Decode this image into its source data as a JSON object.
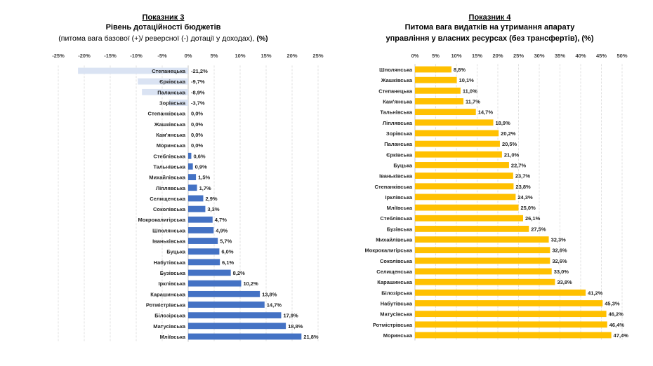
{
  "chart_data": [
    {
      "type": "bar",
      "orientation": "horizontal",
      "title": "Показник 3",
      "subtitle": "Рівень дотаційності бюджетів",
      "note_prefix": "(питома вага базової (+)/ реверсної (-) дотації  у доходах),",
      "note_unit": "(%)",
      "xlim": [
        -25,
        25
      ],
      "ticks": [
        "-25%",
        "-20%",
        "-15%",
        "-10%",
        "-5%",
        "0%",
        "5%",
        "10%",
        "15%",
        "20%",
        "25%"
      ],
      "grid": true,
      "positive_color": "#4472C4",
      "negative_color": "#DAE3F3",
      "categories": [
        "Степанецька",
        "Єрківська",
        "Паланська",
        "Зорівська",
        "Степанківська",
        "Жашківська",
        "Кам'янська",
        "Моринська",
        "Стеблівська",
        "Тальнівська",
        "Михайлівська",
        "Ліплявська",
        "Селищенська",
        "Соколівська",
        "Мокрокалигірська",
        "Шполянська",
        "Іваньківська",
        "Буцька",
        "Набутівська",
        "Бузівська",
        "Ірклівська",
        "Карашинська",
        "Ротмістрівська",
        "Білозірська",
        "Матусівська",
        "Мліївська"
      ],
      "values": [
        -21.2,
        -9.7,
        -8.9,
        -3.7,
        0.0,
        0.0,
        0.0,
        0.0,
        0.6,
        0.9,
        1.5,
        1.7,
        2.9,
        3.3,
        4.7,
        4.9,
        5.7,
        6.0,
        6.1,
        8.2,
        10.2,
        13.8,
        14.7,
        17.9,
        18.8,
        21.8
      ],
      "labels": [
        "-21,2%",
        "-9,7%",
        "-8,9%",
        "-3,7%",
        "0,0%",
        "0,0%",
        "0,0%",
        "0,0%",
        "0,6%",
        "0,9%",
        "1,5%",
        "1,7%",
        "2,9%",
        "3,3%",
        "4,7%",
        "4,9%",
        "5,7%",
        "6,0%",
        "6,1%",
        "8,2%",
        "10,2%",
        "13,8%",
        "14,7%",
        "17,9%",
        "18,8%",
        "21,8%"
      ]
    },
    {
      "type": "bar",
      "orientation": "horizontal",
      "title": "Показник 4",
      "subtitle": "Питома вага видатків на утримання апарату",
      "subtitle2": "управління у власних ресурсах (без трансфертів), (%)",
      "xlim": [
        0,
        50
      ],
      "ticks": [
        "0%",
        "5%",
        "10%",
        "15%",
        "20%",
        "25%",
        "30%",
        "35%",
        "40%",
        "45%",
        "50%"
      ],
      "grid": true,
      "color": "#FFC000",
      "categories": [
        "Шполянська",
        "Жашківська",
        "Степанецька",
        "Кам'янська",
        "Тальнівська",
        "Ліплявська",
        "Зорівська",
        "Паланська",
        "Єрківська",
        "Буцька",
        "Іваньківська",
        "Степанківська",
        "Ірклівська",
        "Мліївська",
        "Стеблівська",
        "Бузівська",
        "Михайлівська",
        "Мокрокалигірська",
        "Соколівська",
        "Селищенська",
        "Карашинська",
        "Білозірська",
        "Набутівська",
        "Матусівська",
        "Ротмістрівська",
        "Моринська"
      ],
      "values": [
        8.8,
        10.1,
        11.0,
        11.7,
        14.7,
        18.9,
        20.2,
        20.5,
        21.0,
        22.7,
        23.7,
        23.8,
        24.3,
        25.0,
        26.1,
        27.5,
        32.3,
        32.6,
        32.6,
        33.0,
        33.8,
        41.2,
        45.3,
        46.2,
        46.4,
        47.4
      ],
      "labels": [
        "8,8%",
        "10,1%",
        "11,0%",
        "11,7%",
        "14,7%",
        "18,9%",
        "20,2%",
        "20,5%",
        "21,0%",
        "22,7%",
        "23,7%",
        "23,8%",
        "24,3%",
        "25,0%",
        "26,1%",
        "27,5%",
        "32,3%",
        "32,6%",
        "32,6%",
        "33,0%",
        "33,8%",
        "41,2%",
        "45,3%",
        "46,2%",
        "46,4%",
        "47,4%"
      ]
    }
  ]
}
